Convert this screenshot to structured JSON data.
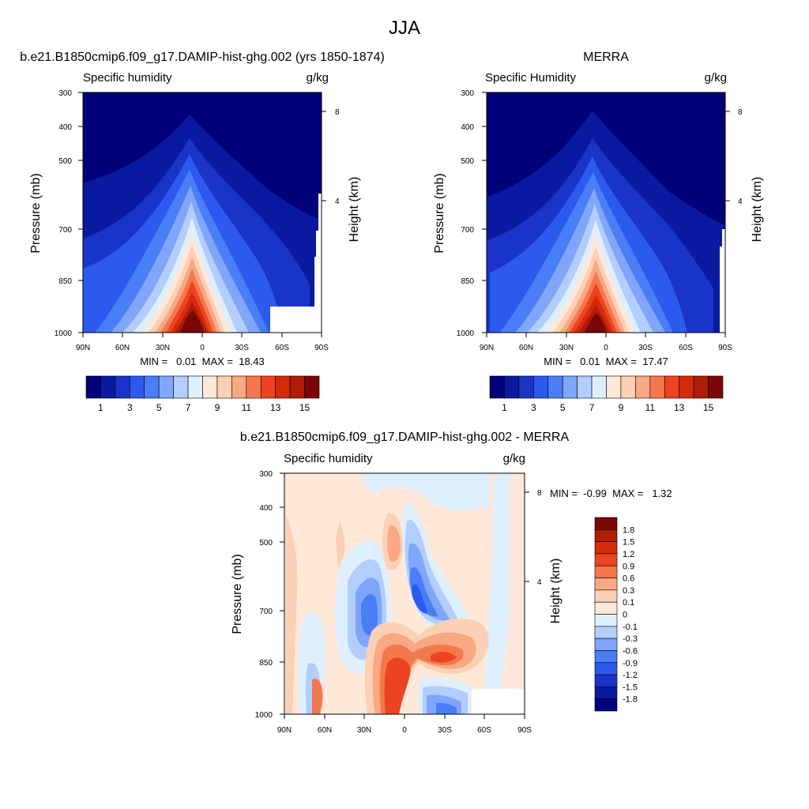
{
  "figure": {
    "title": "JJA"
  },
  "panels": [
    {
      "title": "b.e21.B1850cmip6.f09_g17.DAMIP-hist-ghg.002 (yrs 1850-1874)",
      "left_label": "Specific humidity",
      "right_label": "g/kg",
      "ylabel": "Pressure (mb)",
      "y2label": "Height (km)",
      "minmax": "MIN =   0.01  MAX =  18.43"
    },
    {
      "title": "MERRA",
      "left_label": "Specific Humidity",
      "right_label": "g/kg",
      "ylabel": "Pressure (mb)",
      "y2label": "Height (km)",
      "minmax": "MIN =   0.01  MAX =  17.47"
    },
    {
      "title": "b.e21.B1850cmip6.f09_g17.DAMIP-hist-ghg.002 - MERRA",
      "left_label": "Specific humidity",
      "right_label": "g/kg",
      "ylabel": "Pressure (mb)",
      "y2label": "Height (km)",
      "minmax": "MIN =  -0.99  MAX =   1.32"
    }
  ],
  "scale": {
    "pressure_ticks": [
      "300",
      "400",
      "500",
      "700",
      "850",
      "1000"
    ],
    "lat_ticks": [
      "90N",
      "60N",
      "30N",
      "0",
      "30S",
      "60S",
      "90S"
    ],
    "height_ticks": [
      "8",
      "4"
    ]
  },
  "colorbar_abs": {
    "colors": [
      "#00007a",
      "#0a1aa0",
      "#1a34c8",
      "#2c5aee",
      "#4a7ef6",
      "#7fa6fa",
      "#b3cdfd",
      "#def0ff",
      "#ffe8d8",
      "#fcd0b4",
      "#f8a882",
      "#f4784e",
      "#ec4422",
      "#d52b0a",
      "#b01c06",
      "#7a0705"
    ],
    "labels": [
      "1",
      "3",
      "5",
      "7",
      "9",
      "11",
      "13",
      "15"
    ]
  },
  "colorbar_diff": {
    "colors": [
      "#00007a",
      "#0a1aa0",
      "#1a34c8",
      "#2c5aee",
      "#4a7ef6",
      "#7fa6fa",
      "#b3cdfd",
      "#def0ff",
      "#ffe8d8",
      "#fcd0b4",
      "#f8a882",
      "#f4784e",
      "#ec4422",
      "#d52b0a",
      "#b01c06",
      "#7a0705"
    ],
    "labels": [
      "1.8",
      "1.5",
      "1.2",
      "0.9",
      "0.6",
      "0.3",
      "0.1",
      "0",
      "-0.1",
      "-0.3",
      "-0.6",
      "-0.9",
      "-1.2",
      "-1.5",
      "-1.8"
    ]
  },
  "chart_data": [
    {
      "type": "heatmap",
      "title": "b.e21.B1850cmip6.f09_g17.DAMIP-hist-ghg.002 (yrs 1850-1874)",
      "variable": "Specific humidity",
      "units": "g/kg",
      "x": "latitude (90N to 90S)",
      "y": "pressure (mb)",
      "xlabel": "",
      "ylabel": "Pressure (mb)",
      "ylim": [
        1000,
        300
      ],
      "min": 0.01,
      "max": 18.43,
      "peak_location": {
        "lat": "~10N",
        "pressure_mb": 1000
      }
    },
    {
      "type": "heatmap",
      "title": "MERRA",
      "variable": "Specific Humidity",
      "units": "g/kg",
      "ylabel": "Pressure (mb)",
      "ylim": [
        1000,
        300
      ],
      "min": 0.01,
      "max": 17.47,
      "peak_location": {
        "lat": "~10N",
        "pressure_mb": 1000
      }
    },
    {
      "type": "heatmap",
      "title": "b.e21.B1850cmip6.f09_g17.DAMIP-hist-ghg.002 - MERRA",
      "variable": "Specific humidity",
      "units": "g/kg",
      "ylabel": "Pressure (mb)",
      "ylim": [
        1000,
        300
      ],
      "min": -0.99,
      "max": 1.32
    }
  ]
}
